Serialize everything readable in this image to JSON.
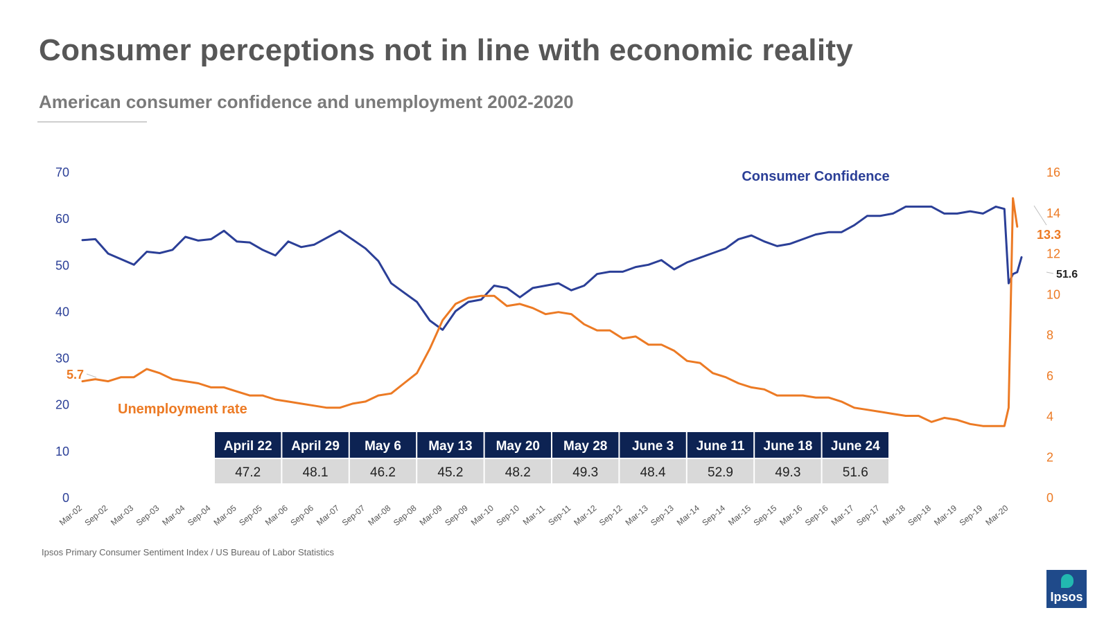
{
  "title": "Consumer perceptions not in line with economic reality",
  "subtitle": "American consumer confidence and unemployment 2002-2020",
  "source": "Ipsos Primary Consumer Sentiment Index / US Bureau of Labor Statistics",
  "logo_text": "Ipsos",
  "colors": {
    "confidence": "#2b3f97",
    "unemployment": "#ec7a24",
    "table_header_bg": "#0d2353",
    "table_value_bg": "#d9d9d9"
  },
  "chart_data": {
    "type": "line",
    "x_ticks": [
      "Mar-02",
      "Sep-02",
      "Mar-03",
      "Sep-03",
      "Mar-04",
      "Sep-04",
      "Mar-05",
      "Sep-05",
      "Mar-06",
      "Sep-06",
      "Mar-07",
      "Sep-07",
      "Mar-08",
      "Sep-08",
      "Mar-09",
      "Sep-09",
      "Mar-10",
      "Sep-10",
      "Mar-11",
      "Sep-11",
      "Mar-12",
      "Sep-12",
      "Mar-13",
      "Sep-13",
      "Mar-14",
      "Sep-14",
      "Mar-15",
      "Sep-15",
      "Mar-16",
      "Sep-16",
      "Mar-17",
      "Sep-17",
      "Mar-18",
      "Sep-18",
      "Mar-19",
      "Sep-19",
      "Mar-20"
    ],
    "y_left": {
      "ticks": [
        "0",
        "10",
        "20",
        "30",
        "40",
        "50",
        "60",
        "70"
      ],
      "range": [
        0,
        70
      ]
    },
    "y_right": {
      "ticks": [
        "0",
        "2",
        "4",
        "6",
        "8",
        "10",
        "12",
        "14",
        "16"
      ],
      "range": [
        0,
        16
      ]
    },
    "grid": false,
    "series": [
      {
        "name": "Consumer Confidence",
        "axis": "left",
        "points": [
          [
            "Mar-02",
            55.3
          ],
          [
            "Jun-02",
            55.5
          ],
          [
            "Sep-02",
            52.4
          ],
          [
            "Dec-02",
            51.2
          ],
          [
            "Mar-03",
            50.0
          ],
          [
            "Jun-03",
            52.8
          ],
          [
            "Sep-03",
            52.5
          ],
          [
            "Dec-03",
            53.2
          ],
          [
            "Mar-04",
            56.0
          ],
          [
            "Jun-04",
            55.2
          ],
          [
            "Sep-04",
            55.5
          ],
          [
            "Dec-04",
            57.3
          ],
          [
            "Mar-05",
            55.0
          ],
          [
            "Jun-05",
            54.8
          ],
          [
            "Sep-05",
            53.2
          ],
          [
            "Dec-05",
            52.0
          ],
          [
            "Mar-06",
            55.0
          ],
          [
            "Jun-06",
            53.8
          ],
          [
            "Sep-06",
            54.3
          ],
          [
            "Dec-06",
            55.8
          ],
          [
            "Mar-07",
            57.3
          ],
          [
            "Jun-07",
            55.4
          ],
          [
            "Sep-07",
            53.5
          ],
          [
            "Dec-07",
            50.8
          ],
          [
            "Mar-08",
            46.0
          ],
          [
            "Jun-08",
            44.0
          ],
          [
            "Sep-08",
            42.0
          ],
          [
            "Dec-08",
            38.0
          ],
          [
            "Mar-09",
            36.0
          ],
          [
            "Jun-09",
            40.0
          ],
          [
            "Sep-09",
            42.0
          ],
          [
            "Dec-09",
            42.5
          ],
          [
            "Mar-10",
            45.5
          ],
          [
            "Jun-10",
            45.0
          ],
          [
            "Sep-10",
            43.0
          ],
          [
            "Dec-10",
            45.0
          ],
          [
            "Mar-11",
            45.5
          ],
          [
            "Jun-11",
            46.0
          ],
          [
            "Sep-11",
            44.5
          ],
          [
            "Dec-11",
            45.5
          ],
          [
            "Mar-12",
            48.0
          ],
          [
            "Jun-12",
            48.5
          ],
          [
            "Sep-12",
            48.5
          ],
          [
            "Dec-12",
            49.5
          ],
          [
            "Mar-13",
            50.0
          ],
          [
            "Jun-13",
            51.0
          ],
          [
            "Sep-13",
            49.0
          ],
          [
            "Dec-13",
            50.5
          ],
          [
            "Mar-14",
            51.5
          ],
          [
            "Jun-14",
            52.5
          ],
          [
            "Sep-14",
            53.5
          ],
          [
            "Dec-14",
            55.5
          ],
          [
            "Mar-15",
            56.3
          ],
          [
            "Jun-15",
            55.0
          ],
          [
            "Sep-15",
            54.0
          ],
          [
            "Dec-15",
            54.5
          ],
          [
            "Mar-16",
            55.5
          ],
          [
            "Jun-16",
            56.5
          ],
          [
            "Sep-16",
            57.0
          ],
          [
            "Dec-16",
            57.0
          ],
          [
            "Mar-17",
            58.5
          ],
          [
            "Jun-17",
            60.5
          ],
          [
            "Sep-17",
            60.5
          ],
          [
            "Dec-17",
            61.0
          ],
          [
            "Mar-18",
            62.5
          ],
          [
            "Jun-18",
            62.5
          ],
          [
            "Sep-18",
            62.5
          ],
          [
            "Dec-18",
            61.0
          ],
          [
            "Mar-19",
            61.0
          ],
          [
            "Jun-19",
            61.5
          ],
          [
            "Sep-19",
            61.0
          ],
          [
            "Dec-19",
            62.5
          ],
          [
            "Feb-20",
            62.0
          ],
          [
            "Mar-20",
            46.0
          ],
          [
            "Apr-20",
            48.0
          ],
          [
            "May-20",
            48.4
          ],
          [
            "Jun-20",
            51.6
          ]
        ]
      },
      {
        "name": "Unemployment rate",
        "axis": "right",
        "points": [
          [
            "Mar-02",
            5.7
          ],
          [
            "Jun-02",
            5.8
          ],
          [
            "Sep-02",
            5.7
          ],
          [
            "Dec-02",
            5.9
          ],
          [
            "Mar-03",
            5.9
          ],
          [
            "Jun-03",
            6.3
          ],
          [
            "Sep-03",
            6.1
          ],
          [
            "Dec-03",
            5.8
          ],
          [
            "Mar-04",
            5.7
          ],
          [
            "Jun-04",
            5.6
          ],
          [
            "Sep-04",
            5.4
          ],
          [
            "Dec-04",
            5.4
          ],
          [
            "Mar-05",
            5.2
          ],
          [
            "Jun-05",
            5.0
          ],
          [
            "Sep-05",
            5.0
          ],
          [
            "Dec-05",
            4.8
          ],
          [
            "Mar-06",
            4.7
          ],
          [
            "Jun-06",
            4.6
          ],
          [
            "Sep-06",
            4.5
          ],
          [
            "Dec-06",
            4.4
          ],
          [
            "Mar-07",
            4.4
          ],
          [
            "Jun-07",
            4.6
          ],
          [
            "Sep-07",
            4.7
          ],
          [
            "Dec-07",
            5.0
          ],
          [
            "Mar-08",
            5.1
          ],
          [
            "Jun-08",
            5.6
          ],
          [
            "Sep-08",
            6.1
          ],
          [
            "Dec-08",
            7.3
          ],
          [
            "Mar-09",
            8.7
          ],
          [
            "Jun-09",
            9.5
          ],
          [
            "Sep-09",
            9.8
          ],
          [
            "Dec-09",
            9.9
          ],
          [
            "Mar-10",
            9.9
          ],
          [
            "Jun-10",
            9.4
          ],
          [
            "Sep-10",
            9.5
          ],
          [
            "Dec-10",
            9.3
          ],
          [
            "Mar-11",
            9.0
          ],
          [
            "Jun-11",
            9.1
          ],
          [
            "Sep-11",
            9.0
          ],
          [
            "Dec-11",
            8.5
          ],
          [
            "Mar-12",
            8.2
          ],
          [
            "Jun-12",
            8.2
          ],
          [
            "Sep-12",
            7.8
          ],
          [
            "Dec-12",
            7.9
          ],
          [
            "Mar-13",
            7.5
          ],
          [
            "Jun-13",
            7.5
          ],
          [
            "Sep-13",
            7.2
          ],
          [
            "Dec-13",
            6.7
          ],
          [
            "Mar-14",
            6.6
          ],
          [
            "Jun-14",
            6.1
          ],
          [
            "Sep-14",
            5.9
          ],
          [
            "Dec-14",
            5.6
          ],
          [
            "Mar-15",
            5.4
          ],
          [
            "Jun-15",
            5.3
          ],
          [
            "Sep-15",
            5.0
          ],
          [
            "Dec-15",
            5.0
          ],
          [
            "Mar-16",
            5.0
          ],
          [
            "Jun-16",
            4.9
          ],
          [
            "Sep-16",
            4.9
          ],
          [
            "Dec-16",
            4.7
          ],
          [
            "Mar-17",
            4.4
          ],
          [
            "Jun-17",
            4.3
          ],
          [
            "Sep-17",
            4.2
          ],
          [
            "Dec-17",
            4.1
          ],
          [
            "Mar-18",
            4.0
          ],
          [
            "Jun-18",
            4.0
          ],
          [
            "Sep-18",
            3.7
          ],
          [
            "Dec-18",
            3.9
          ],
          [
            "Mar-19",
            3.8
          ],
          [
            "Jun-19",
            3.6
          ],
          [
            "Sep-19",
            3.5
          ],
          [
            "Dec-19",
            3.5
          ],
          [
            "Feb-20",
            3.5
          ],
          [
            "Mar-20",
            4.4
          ],
          [
            "Apr-20",
            14.7
          ],
          [
            "May-20",
            13.3
          ]
        ]
      }
    ],
    "series_labels": {
      "confidence": "Consumer Confidence",
      "unemployment": "Unemployment rate"
    },
    "annotations": {
      "unemp_start": "5.7",
      "unemp_end": "13.3",
      "conf_end": "51.6"
    },
    "weekly_table": {
      "dates": [
        "April 22",
        "April 29",
        "May 6",
        "May 13",
        "May 20",
        "May 28",
        "June 3",
        "June 11",
        "June 18",
        "June 24"
      ],
      "values": [
        "47.2",
        "48.1",
        "46.2",
        "45.2",
        "48.2",
        "49.3",
        "48.4",
        "52.9",
        "49.3",
        "51.6"
      ]
    }
  }
}
